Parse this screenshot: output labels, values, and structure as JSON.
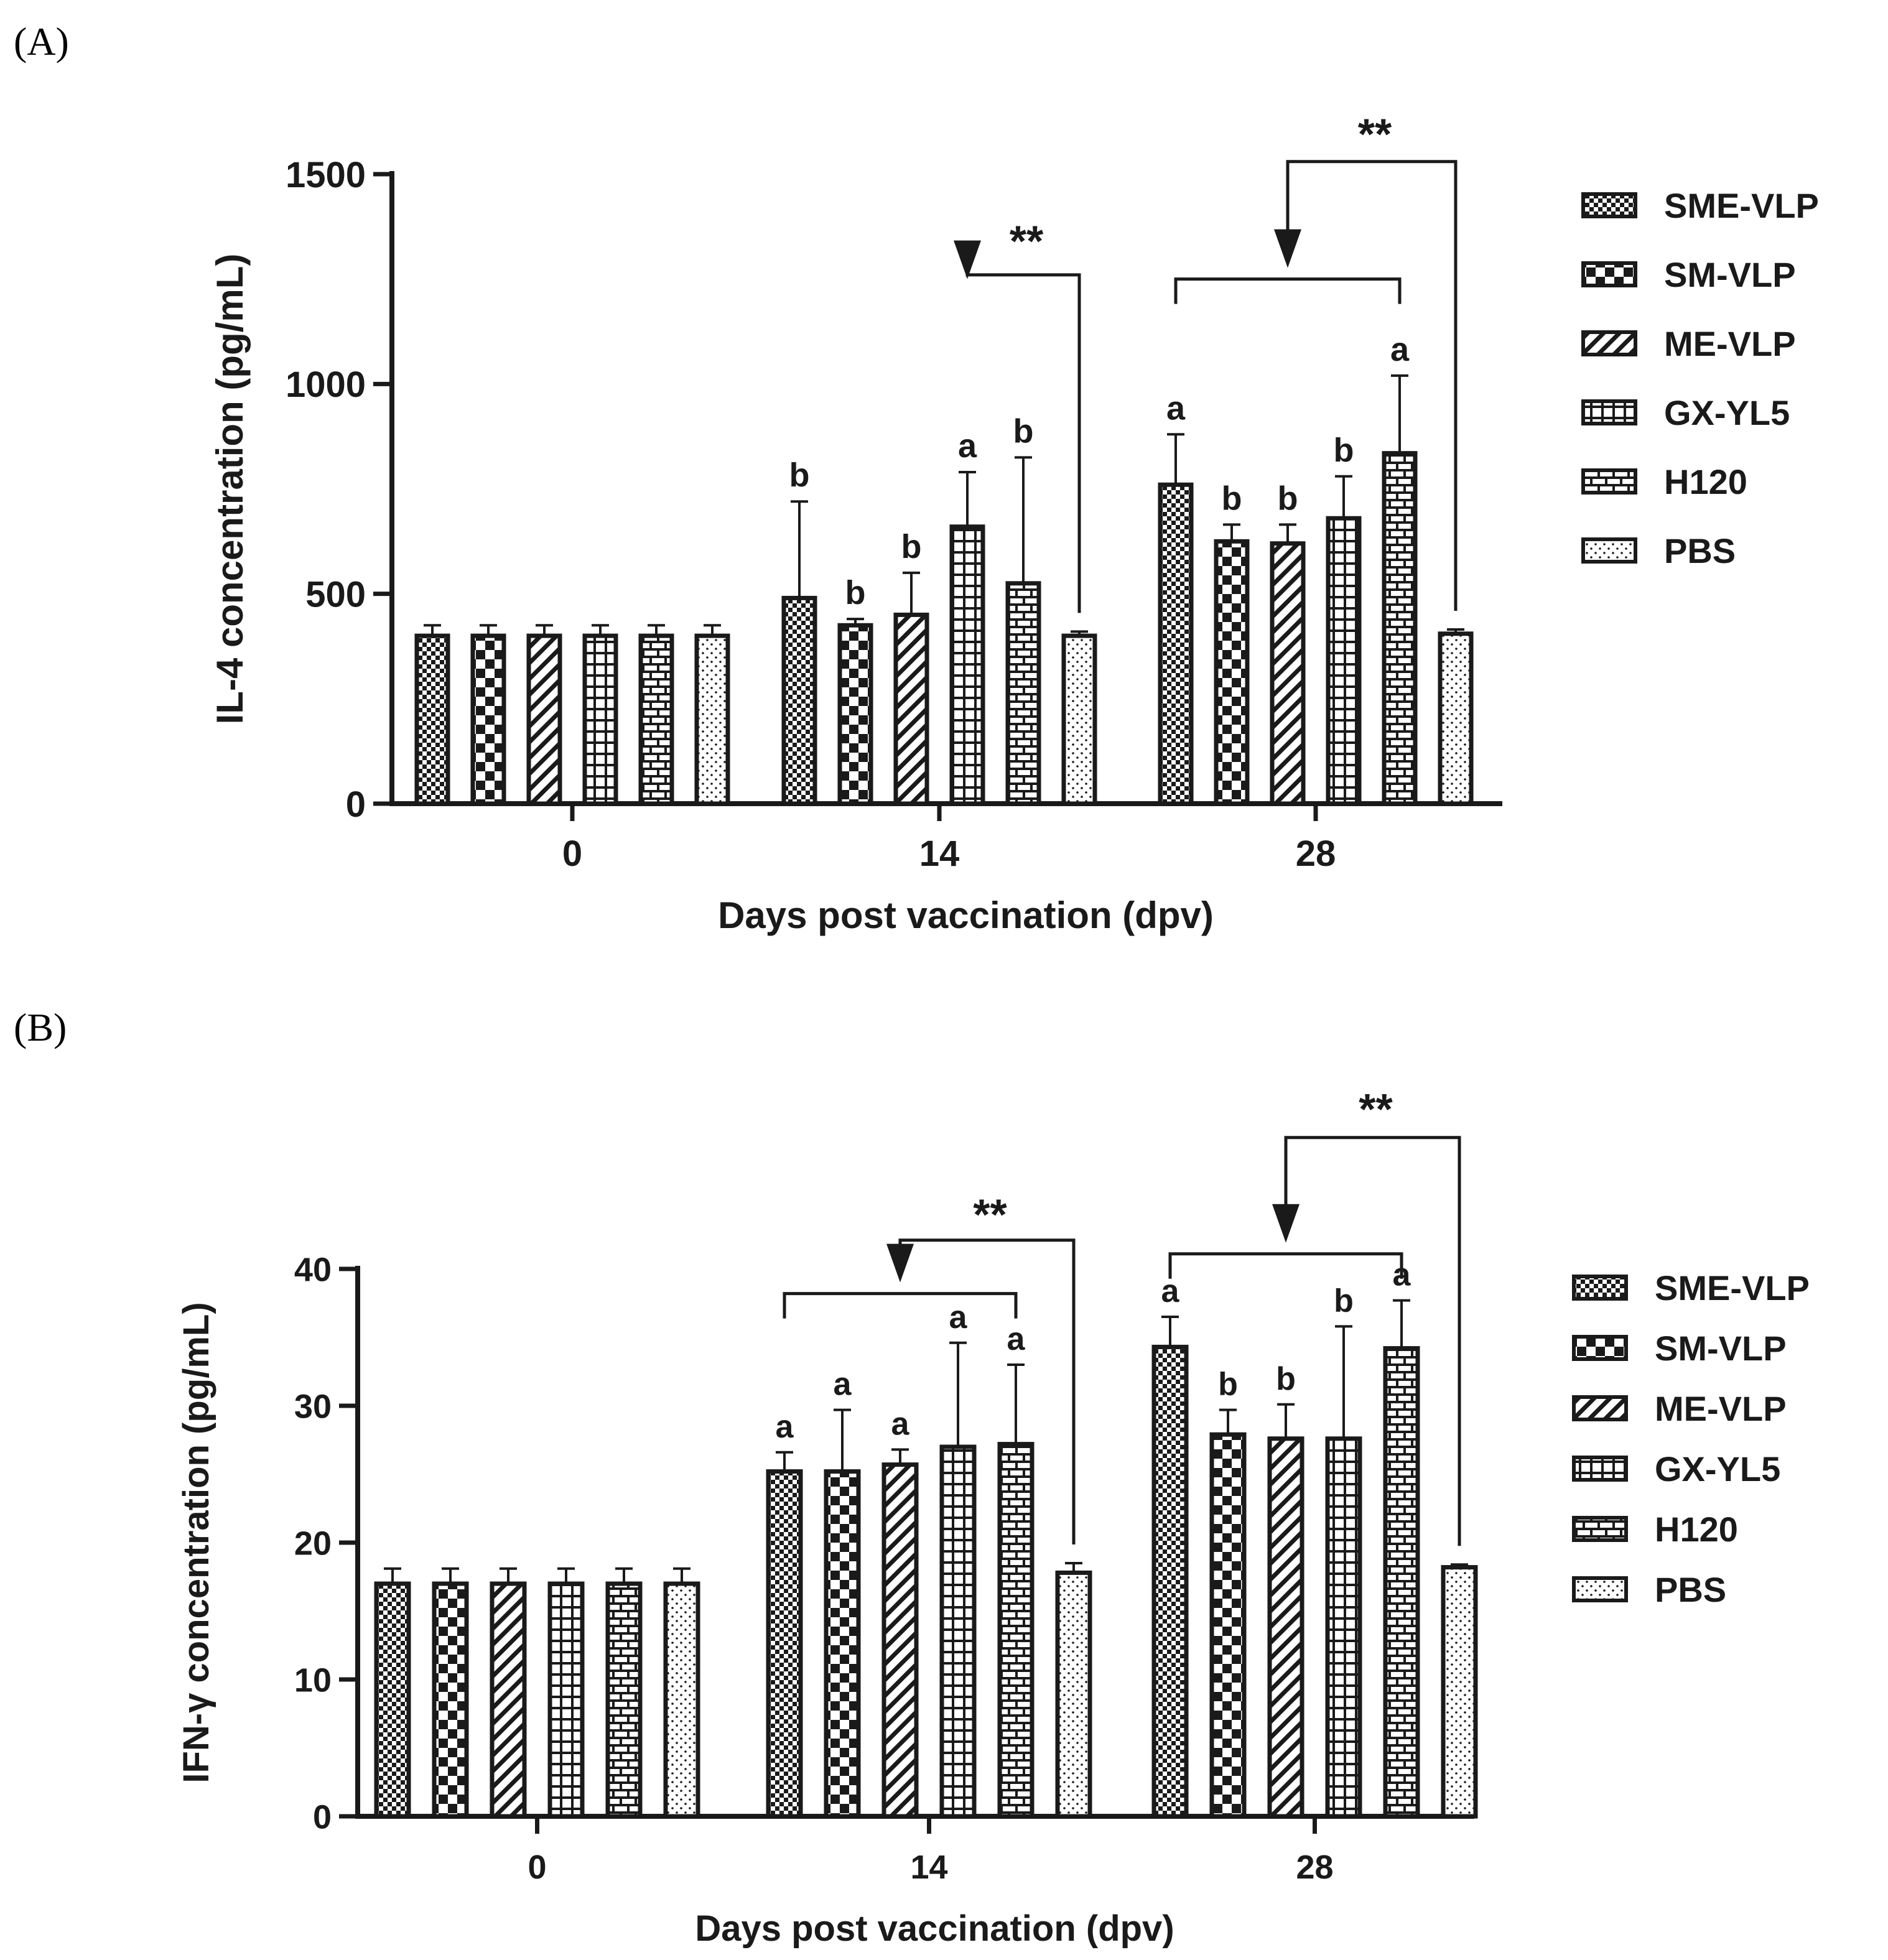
{
  "series_names": [
    "SME-VLP",
    "SM-VLP",
    "ME-VLP",
    "GX-YL5",
    "H120",
    "PBS"
  ],
  "chart_data": [
    {
      "type": "bar",
      "panel": "(A)",
      "title": "",
      "xlabel": "Days post vaccination (dpv)",
      "ylabel": "IL-4 concentration (pg/mL)",
      "ylim": [
        0,
        1500
      ],
      "yticks": [
        0,
        500,
        1000,
        1500
      ],
      "categories": [
        "0",
        "14",
        "28"
      ],
      "series": [
        {
          "name": "SME-VLP",
          "values": [
            400,
            490,
            760
          ],
          "errors": [
            25,
            230,
            120
          ],
          "labels": [
            "",
            "b",
            "a"
          ]
        },
        {
          "name": "SM-VLP",
          "values": [
            400,
            425,
            625
          ],
          "errors": [
            25,
            15,
            40
          ],
          "labels": [
            "",
            "b",
            "b"
          ]
        },
        {
          "name": "ME-VLP",
          "values": [
            400,
            450,
            620
          ],
          "errors": [
            25,
            100,
            45
          ],
          "labels": [
            "",
            "b",
            "b"
          ]
        },
        {
          "name": "GX-YL5",
          "values": [
            400,
            660,
            680
          ],
          "errors": [
            25,
            130,
            100
          ],
          "labels": [
            "",
            "a",
            "b"
          ]
        },
        {
          "name": "H120",
          "values": [
            400,
            525,
            835
          ],
          "errors": [
            25,
            300,
            185
          ],
          "labels": [
            "",
            "b",
            "a"
          ]
        },
        {
          "name": "PBS",
          "values": [
            400,
            400,
            405
          ],
          "errors": [
            25,
            10,
            10
          ],
          "labels": [
            "",
            "",
            ""
          ]
        }
      ],
      "significance": [
        {
          "category": "14",
          "from_series": 3,
          "to_series": 3,
          "ref_series": 5,
          "label": "**",
          "bracket_y": 1250,
          "top_y": 1260,
          "star_y": 1335
        },
        {
          "category": "28",
          "from_series": 0,
          "to_series": 4,
          "ref_series": 5,
          "label": "**",
          "bracket_y": 1250,
          "top_y": 1530,
          "star_y": 1590
        }
      ]
    },
    {
      "type": "bar",
      "panel": "(B)",
      "title": "",
      "xlabel": "Days post vaccination (dpv)",
      "ylabel": "IFN-γ concentration (pg/mL)",
      "ylim": [
        0,
        40
      ],
      "yticks": [
        0,
        10,
        20,
        30,
        40
      ],
      "categories": [
        "0",
        "14",
        "28"
      ],
      "series": [
        {
          "name": "SME-VLP",
          "values": [
            17,
            25.2,
            34.3
          ],
          "errors": [
            1.1,
            1.4,
            2.2
          ],
          "labels": [
            "",
            "a",
            "a"
          ]
        },
        {
          "name": "SM-VLP",
          "values": [
            17,
            25.2,
            27.9
          ],
          "errors": [
            1.1,
            4.5,
            1.8
          ],
          "labels": [
            "",
            "a",
            "b"
          ]
        },
        {
          "name": "ME-VLP",
          "values": [
            17,
            25.7,
            27.6
          ],
          "errors": [
            1.1,
            1.1,
            2.5
          ],
          "labels": [
            "",
            "a",
            "b"
          ]
        },
        {
          "name": "GX-YL5",
          "values": [
            17,
            27.0,
            27.6
          ],
          "errors": [
            1.1,
            7.6,
            8.2
          ],
          "labels": [
            "",
            "a",
            "b"
          ]
        },
        {
          "name": "H120",
          "values": [
            17,
            27.2,
            34.2
          ],
          "errors": [
            1.1,
            5.8,
            3.5
          ],
          "labels": [
            "",
            "a",
            "a"
          ]
        },
        {
          "name": "PBS",
          "values": [
            17,
            17.8,
            18.2
          ],
          "errors": [
            1.1,
            0.7,
            0.2
          ],
          "labels": [
            "",
            "",
            ""
          ]
        }
      ],
      "significance": [
        {
          "category": "14",
          "from_series": 0,
          "to_series": 4,
          "ref_series": 5,
          "label": "**",
          "bracket_y": 38.2,
          "top_y": 42.1,
          "star_y": 43.8
        },
        {
          "category": "28",
          "from_series": 0,
          "to_series": 4,
          "ref_series": 5,
          "label": "**",
          "bracket_y": 41.1,
          "top_y": 49.6,
          "star_y": 51.5
        }
      ]
    }
  ]
}
